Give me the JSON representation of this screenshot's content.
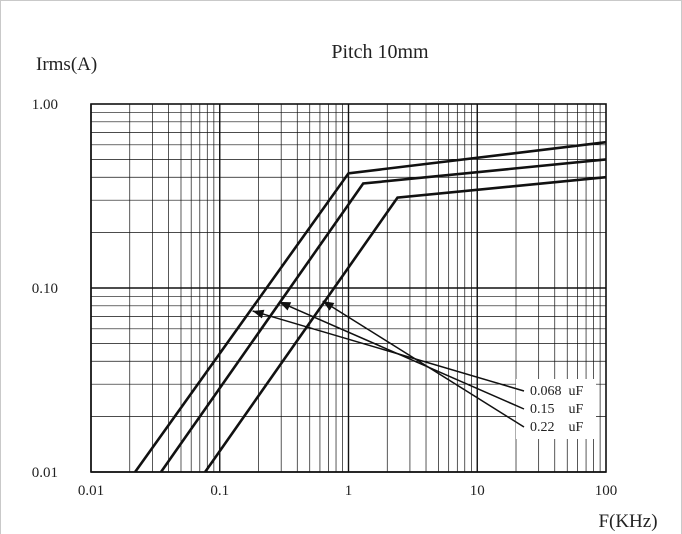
{
  "chart_data": {
    "type": "line",
    "title": "Pitch 10mm",
    "xlabel": "F(KHz)",
    "ylabel": "Irms(A)",
    "x_scale": "log",
    "y_scale": "log",
    "xlim": [
      0.01,
      100
    ],
    "ylim": [
      0.01,
      1.0
    ],
    "x_ticks": [
      "0.01",
      "0.1",
      "1",
      "10",
      "100"
    ],
    "y_ticks": [
      "1.00",
      "0.10",
      "0.01"
    ],
    "grid": true,
    "series": [
      {
        "name": "0.068  uF",
        "x": [
          0.022,
          1.0,
          100
        ],
        "y": [
          0.01,
          0.42,
          0.62
        ],
        "label_point": [
          0.18,
          0.075
        ]
      },
      {
        "name": "0.15    uF",
        "x": [
          0.035,
          1.3,
          100
        ],
        "y": [
          0.01,
          0.37,
          0.5
        ],
        "label_point": [
          0.29,
          0.084
        ]
      },
      {
        "name": "0.22    uF",
        "x": [
          0.077,
          2.4,
          100
        ],
        "y": [
          0.01,
          0.31,
          0.4
        ],
        "label_point": [
          0.63,
          0.085
        ]
      }
    ],
    "legend_placement": "bottom-right"
  }
}
